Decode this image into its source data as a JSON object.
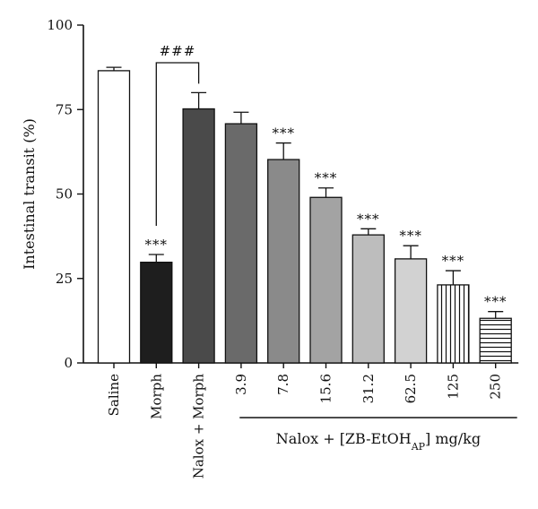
{
  "chart_data": {
    "type": "bar",
    "categories": [
      "Saline",
      "Morph",
      "Nalox + Morph",
      "3.9",
      "7.8",
      "15.6",
      "31.2",
      "62.5",
      "125",
      "250"
    ],
    "values": [
      86.5,
      29.8,
      75.2,
      70.8,
      60.2,
      49.0,
      37.9,
      30.8,
      23.1,
      13.2
    ],
    "errors": [
      1.0,
      2.3,
      4.8,
      3.4,
      4.9,
      2.8,
      1.8,
      3.9,
      4.2,
      2.0
    ],
    "significance": [
      "",
      "***",
      "",
      "",
      "***",
      "***",
      "***",
      "***",
      "***",
      "***"
    ],
    "fills": [
      "#ffffff",
      "#1e1e1e",
      "#4a4a4a",
      "#6a6a6a",
      "#8a8a8a",
      "#a3a3a3",
      "#bdbdbd",
      "#d2d2d2",
      "vertical-stripes",
      "horizontal-stripes"
    ],
    "comparison": {
      "from": "Morph",
      "to": "Nalox + Morph",
      "label": "###"
    },
    "group_label_parts": [
      "Nalox + [ZB-EtOH",
      "AP",
      "] mg/kg"
    ],
    "group_start": "3.9",
    "ylabel": "Intestinal transit (%)",
    "ylim": [
      0,
      100
    ],
    "yticks": [
      0,
      25,
      50,
      75,
      100
    ],
    "grid": false
  }
}
